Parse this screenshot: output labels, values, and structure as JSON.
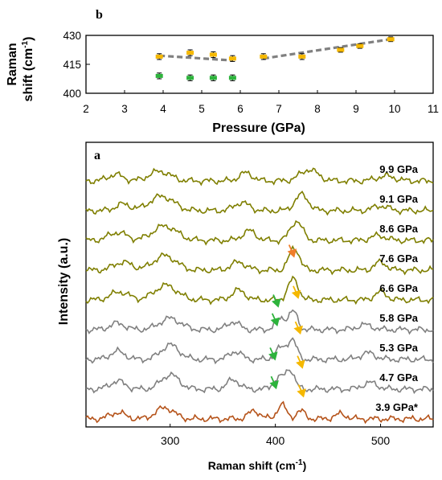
{
  "chart_data": [
    {
      "panel": "b",
      "type": "scatter",
      "xlabel": "Pressure (GPa)",
      "ylabel": "Raman shift (cm-1)",
      "ylabel_lines": [
        "Raman",
        "shift (cm",
        "-1",
        ")"
      ],
      "xlim": [
        2,
        11
      ],
      "ylim": [
        400,
        430
      ],
      "xticks": [
        "2",
        "3",
        "4",
        "5",
        "6",
        "7",
        "8",
        "9",
        "10",
        "11"
      ],
      "yticks": [
        "400",
        "415",
        "430"
      ],
      "grid": false,
      "series": [
        {
          "color": "#f5b800",
          "points": [
            {
              "x": 3.9,
              "y": 419,
              "err": 1.5
            },
            {
              "x": 4.7,
              "y": 421,
              "err": 1.5
            },
            {
              "x": 5.3,
              "y": 420,
              "err": 1.5
            },
            {
              "x": 5.8,
              "y": 418,
              "err": 1.5
            },
            {
              "x": 6.6,
              "y": 419,
              "err": 1.5
            },
            {
              "x": 7.6,
              "y": 419,
              "err": 1.5
            },
            {
              "x": 8.6,
              "y": 422.5,
              "err": 1.2
            },
            {
              "x": 9.1,
              "y": 424.5,
              "err": 1.2
            },
            {
              "x": 9.9,
              "y": 428,
              "err": 1.2
            }
          ]
        },
        {
          "color": "#2db33c",
          "points": [
            {
              "x": 3.9,
              "y": 409,
              "err": 1.5
            },
            {
              "x": 4.7,
              "y": 408,
              "err": 1.5
            },
            {
              "x": 5.3,
              "y": 408,
              "err": 1.5
            },
            {
              "x": 5.8,
              "y": 408,
              "err": 1.5
            }
          ]
        }
      ],
      "trend_lines": [
        {
          "color": "#808080",
          "points": [
            [
              3.9,
              419.5
            ],
            [
              5.8,
              417
            ]
          ]
        },
        {
          "color": "#808080",
          "points": [
            [
              6.6,
              418
            ],
            [
              9.9,
              428
            ]
          ]
        }
      ]
    },
    {
      "panel": "a",
      "type": "line",
      "xlabel": "Raman shift (cm-1)",
      "xlabel_parts": [
        "Raman shift (cm",
        "-1",
        ")"
      ],
      "ylabel": "Intensity (a.u.)",
      "xlim": [
        220,
        550
      ],
      "xticks": [
        "300",
        "400",
        "500"
      ],
      "xtick_values": [
        300,
        400,
        500
      ],
      "series": [
        {
          "name": "9.9 GPa",
          "color": "#7f7f00",
          "offset": 9,
          "peaks": [
            [
              248,
              8,
              10
            ],
            [
              290,
              12,
              14
            ],
            [
              372,
              10,
              9
            ],
            [
              432,
              14,
              12
            ],
            [
              505,
              6,
              12
            ]
          ]
        },
        {
          "name": "9.1 GPa",
          "color": "#7f7f00",
          "offset": 8,
          "peaks": [
            [
              255,
              8,
              10
            ],
            [
              292,
              18,
              16
            ],
            [
              368,
              10,
              10
            ],
            [
              425,
              20,
              9
            ],
            [
              500,
              6,
              10
            ]
          ]
        },
        {
          "name": "8.6 GPa",
          "color": "#7f7f00",
          "offset": 7,
          "peaks": [
            [
              250,
              10,
              12
            ],
            [
              295,
              18,
              16
            ],
            [
              375,
              12,
              9
            ],
            [
              420,
              24,
              8
            ],
            [
              498,
              6,
              10
            ]
          ]
        },
        {
          "name": "7.6 GPa",
          "color": "#7f7f00",
          "offset": 6,
          "peaks": [
            [
              255,
              10,
              12
            ],
            [
              295,
              18,
              15
            ],
            [
              365,
              10,
              10
            ],
            [
              418,
              28,
              7
            ],
            [
              500,
              10,
              8
            ]
          ]
        },
        {
          "name": "6.6 GPa",
          "color": "#7f7f00",
          "offset": 5,
          "peaks": [
            [
              252,
              10,
              12
            ],
            [
              296,
              18,
              15
            ],
            [
              365,
              12,
              9
            ],
            [
              417,
              26,
              7
            ],
            [
              500,
              10,
              8
            ]
          ]
        },
        {
          "name": "5.8 GPa",
          "color": "#808080",
          "offset": 4,
          "peaks": [
            [
              250,
              8,
              10
            ],
            [
              300,
              14,
              14
            ],
            [
              360,
              10,
              8
            ],
            [
              405,
              14,
              7
            ],
            [
              417,
              22,
              6
            ],
            [
              485,
              6,
              10
            ]
          ]
        },
        {
          "name": "5.3 GPa",
          "color": "#808080",
          "offset": 3,
          "peaks": [
            [
              250,
              10,
              10
            ],
            [
              300,
              18,
              12
            ],
            [
              362,
              10,
              8
            ],
            [
              405,
              14,
              7
            ],
            [
              416,
              24,
              6
            ],
            [
              488,
              8,
              10
            ]
          ]
        },
        {
          "name": "4.7 GPa",
          "color": "#808080",
          "offset": 2,
          "peaks": [
            [
              250,
              10,
              10
            ],
            [
              300,
              18,
              12
            ],
            [
              360,
              12,
              8
            ],
            [
              403,
              14,
              7
            ],
            [
              414,
              24,
              6
            ],
            [
              490,
              8,
              10
            ]
          ]
        },
        {
          "name": "3.9 GPa*",
          "color": "#b5531a",
          "offset": 1,
          "peaks": [
            [
              250,
              8,
              10
            ],
            [
              295,
              14,
              12
            ],
            [
              380,
              10,
              8
            ],
            [
              406,
              18,
              6
            ],
            [
              424,
              10,
              6
            ],
            [
              462,
              6,
              8
            ]
          ]
        }
      ],
      "arrows": [
        {
          "curve": "7.6 GPa",
          "x": 418,
          "color": "#f07d2a"
        },
        {
          "curve": "6.6 GPa",
          "x": 403,
          "color": "#2db33c"
        },
        {
          "curve": "6.6 GPa",
          "x": 422,
          "color": "#f5b800"
        },
        {
          "curve": "5.8 GPa",
          "x": 402,
          "color": "#2db33c"
        },
        {
          "curve": "5.8 GPa",
          "x": 424,
          "color": "#f5b800"
        },
        {
          "curve": "5.3 GPa",
          "x": 400,
          "color": "#2db33c"
        },
        {
          "curve": "5.3 GPa",
          "x": 426,
          "color": "#f5b800"
        },
        {
          "curve": "4.7 GPa",
          "x": 401,
          "color": "#2db33c"
        },
        {
          "curve": "4.7 GPa",
          "x": 427,
          "color": "#f5b800"
        }
      ]
    }
  ]
}
